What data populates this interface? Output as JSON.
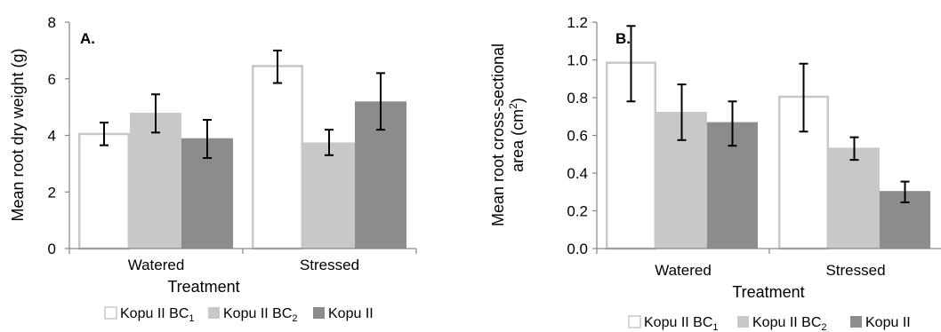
{
  "chart_data": [
    {
      "type": "bar",
      "panel_label": "A.",
      "title": "",
      "xlabel": "Treatment",
      "ylabel": "Mean root dry weight (g)",
      "ylabel_unit_sup": "",
      "ylabel_suffix": "",
      "categories": [
        "Watered",
        "Stressed"
      ],
      "ylim": [
        0,
        8
      ],
      "yticks": [
        0,
        2,
        4,
        6,
        8
      ],
      "ytick_labels": [
        "0",
        "2",
        "4",
        "6",
        "8"
      ],
      "grid": false,
      "legend_position": "bottom",
      "series": [
        {
          "name": "Kopu II BC",
          "sub": "1",
          "color": "#ffffff",
          "stroke": "#c8c8c8",
          "values": [
            4.05,
            6.45
          ],
          "err_low": [
            3.65,
            5.85
          ],
          "err_high": [
            4.45,
            7.0
          ]
        },
        {
          "name": "Kopu II BC",
          "sub": "2",
          "color": "#c8c8c8",
          "stroke": "#c8c8c8",
          "values": [
            4.8,
            3.75
          ],
          "err_low": [
            4.1,
            3.3
          ],
          "err_high": [
            5.45,
            4.2
          ]
        },
        {
          "name": "Kopu II",
          "sub": "",
          "color": "#8c8c8c",
          "stroke": "#8c8c8c",
          "values": [
            3.9,
            5.2
          ],
          "err_low": [
            3.2,
            4.2
          ],
          "err_high": [
            4.55,
            6.2
          ]
        }
      ]
    },
    {
      "type": "bar",
      "panel_label": "B.",
      "title": "",
      "xlabel": "Treatment",
      "ylabel": "Mean root cross-sectional",
      "ylabel_line2": "area (cm",
      "ylabel_unit_sup": "2",
      "ylabel_suffix": ")",
      "categories": [
        "Watered",
        "Stressed"
      ],
      "ylim": [
        0,
        1.2
      ],
      "yticks": [
        0,
        0.2,
        0.4,
        0.6,
        0.8,
        1.0,
        1.2
      ],
      "ytick_labels": [
        "0.0",
        "0.2",
        "0.4",
        "0.6",
        "0.8",
        "1.0",
        "1.2"
      ],
      "grid": false,
      "legend_position": "bottom",
      "series": [
        {
          "name": "Kopu II BC",
          "sub": "1",
          "color": "#ffffff",
          "stroke": "#c8c8c8",
          "values": [
            0.985,
            0.805
          ],
          "err_low": [
            0.78,
            0.62
          ],
          "err_high": [
            1.18,
            0.98
          ]
        },
        {
          "name": "Kopu II BC",
          "sub": "2",
          "color": "#c8c8c8",
          "stroke": "#c8c8c8",
          "values": [
            0.725,
            0.535
          ],
          "err_low": [
            0.575,
            0.47
          ],
          "err_high": [
            0.87,
            0.59
          ]
        },
        {
          "name": "Kopu II",
          "sub": "",
          "color": "#8c8c8c",
          "stroke": "#8c8c8c",
          "values": [
            0.67,
            0.305
          ],
          "err_low": [
            0.545,
            0.245
          ],
          "err_high": [
            0.78,
            0.355
          ]
        }
      ]
    }
  ]
}
